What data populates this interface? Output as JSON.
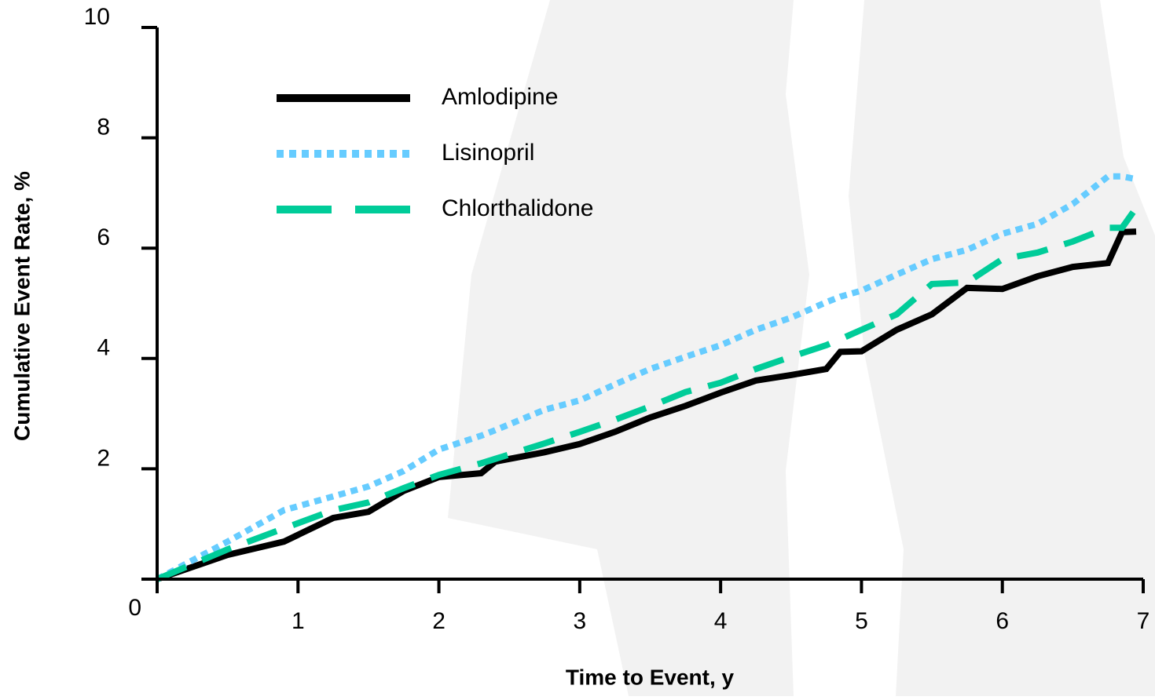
{
  "chart_data": {
    "type": "line",
    "x_label": "Time to Event, y",
    "y_label": "Cumulative Event Rate, %",
    "x": [
      0,
      0.5,
      0.9,
      1.25,
      1.5,
      1.75,
      2,
      2.3,
      2.4,
      2.75,
      3,
      3.25,
      3.5,
      3.75,
      4,
      4.25,
      4.5,
      4.75,
      4.85,
      5,
      5.25,
      5.5,
      5.75,
      6,
      6.25,
      6.5,
      6.75,
      6.85,
      6.95
    ],
    "series": [
      {
        "name": "Amlodipine",
        "color": "#000000",
        "dash": "solid",
        "values": [
          0,
          0.44,
          0.68,
          1.11,
          1.22,
          1.6,
          1.85,
          1.92,
          2.13,
          2.3,
          2.45,
          2.67,
          2.93,
          3.14,
          3.38,
          3.6,
          3.7,
          3.81,
          4.12,
          4.13,
          4.52,
          4.8,
          5.28,
          5.26,
          5.49,
          5.66,
          5.73,
          6.29,
          6.3
        ]
      },
      {
        "name": "Lisinopril",
        "color": "#66ccff",
        "dash": "dotted",
        "values": [
          0,
          0.68,
          1.25,
          1.5,
          1.68,
          1.96,
          2.35,
          2.6,
          2.7,
          3.07,
          3.24,
          3.53,
          3.81,
          4.03,
          4.24,
          4.52,
          4.74,
          5.02,
          5.12,
          5.23,
          5.52,
          5.8,
          5.97,
          6.26,
          6.44,
          6.8,
          7.3,
          7.3,
          7.25
        ]
      },
      {
        "name": "Chlorthalidone",
        "color": "#00cc99",
        "dash": "dashed",
        "values": [
          0,
          0.54,
          0.92,
          1.25,
          1.39,
          1.65,
          1.89,
          2.1,
          2.18,
          2.46,
          2.67,
          2.89,
          3.13,
          3.39,
          3.56,
          3.81,
          4.03,
          4.24,
          4.35,
          4.52,
          4.8,
          5.35,
          5.38,
          5.8,
          5.92,
          6.12,
          6.37,
          6.37,
          6.73
        ]
      }
    ],
    "xlim": [
      0,
      7
    ],
    "xticks": [
      0,
      1,
      2,
      3,
      4,
      5,
      6,
      7
    ],
    "ylim": [
      0,
      10
    ],
    "yticks": [
      0,
      2,
      4,
      6,
      8,
      10
    ],
    "legend": "upper-left",
    "grid": false
  }
}
